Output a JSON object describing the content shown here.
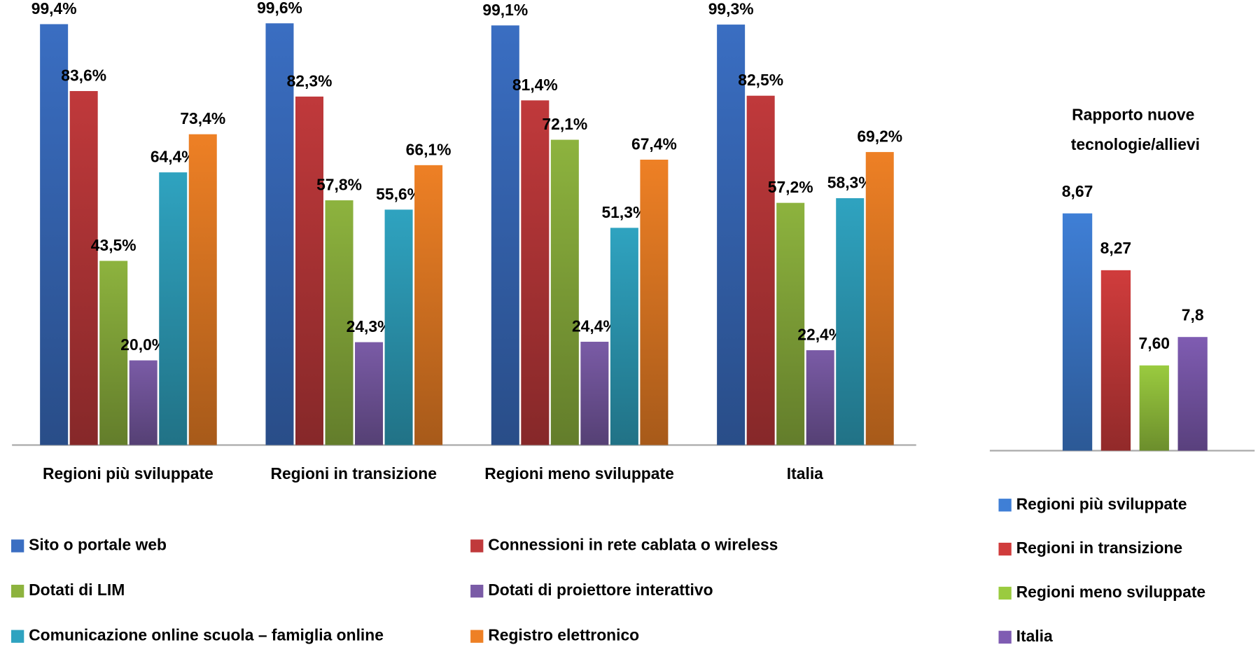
{
  "chart_data": [
    {
      "type": "bar",
      "categories": [
        "Regioni più sviluppate",
        "Regioni in transizione",
        "Regioni meno sviluppate",
        "Italia"
      ],
      "series": [
        {
          "name": "Sito o portale web",
          "color": "#3a6ec2",
          "values": [
            99.4,
            99.6,
            99.1,
            99.3
          ],
          "value_labels": [
            "99,4%",
            "99,6%",
            "99,1%",
            "99,3%"
          ]
        },
        {
          "name": "Connessioni in rete cablata o wireless",
          "color": "#c0393b",
          "values": [
            83.6,
            82.3,
            81.4,
            82.5
          ],
          "value_labels": [
            "83,6%",
            "82,3%",
            "81,4%",
            "82,5%"
          ]
        },
        {
          "name": "Dotati di LIM",
          "color": "#8db33e",
          "values": [
            43.5,
            57.8,
            72.1,
            57.2
          ],
          "value_labels": [
            "43,5%",
            "57,8%",
            "72,1%",
            "57,2%"
          ]
        },
        {
          "name": "Dotati di proiettore interattivo",
          "color": "#7a5ba6",
          "values": [
            20.0,
            24.3,
            24.4,
            22.4
          ],
          "value_labels": [
            "20,0%",
            "24,3%",
            "24,4%",
            "22,4%"
          ]
        },
        {
          "name": "Comunicazione online scuola – famiglia online",
          "color": "#2fa3c0",
          "values": [
            64.4,
            55.6,
            51.3,
            58.3
          ],
          "value_labels": [
            "64,4%",
            "55,6%",
            "51,3%",
            "58,3%"
          ]
        },
        {
          "name": "Registro elettronico",
          "color": "#ee8025",
          "values": [
            73.4,
            66.1,
            67.4,
            69.2
          ],
          "value_labels": [
            "73,4%",
            "66,1%",
            "67,4%",
            "69,2%"
          ]
        }
      ],
      "ylim": [
        0,
        100
      ]
    },
    {
      "type": "bar",
      "title": "Rapporto nuove tecnologie/allievi",
      "categories": [
        "Regioni più sviluppate",
        "Regioni in transizione",
        "Regioni meno sviluppate",
        "Italia"
      ],
      "values": [
        8.67,
        8.27,
        7.6,
        7.8
      ],
      "value_labels": [
        "8,67",
        "8,27",
        "7,60",
        "7,8"
      ],
      "colors": [
        "#3f7fd6",
        "#d03c3c",
        "#9acb3f",
        "#7f5cb2"
      ],
      "ylim": [
        7,
        9
      ]
    }
  ]
}
